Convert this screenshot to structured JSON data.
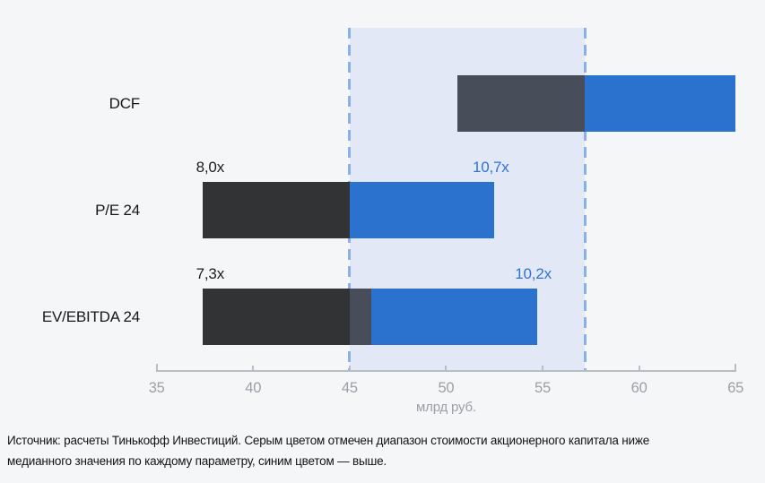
{
  "colors": {
    "background": "#f5f6f8",
    "band_fill": "#e2e8f6",
    "band_dash": "#8ab0e8",
    "bar_black": "#323335",
    "bar_slate": "#474e5a",
    "bar_blue": "#2b72cf",
    "value_label_blue": "#2e74d4",
    "value_label_dark": "#1b1d1f",
    "row_label_dark": "#15171a",
    "axis_gray": "#b9bdc4",
    "tick_text_gray": "#9b9fa7",
    "note_text": "#121315"
  },
  "chart_data": {
    "type": "bar",
    "orientation": "horizontal",
    "title": "",
    "xlabel": "млрд руб.",
    "x_axis": {
      "min": 35,
      "max": 65,
      "ticks": [
        "35",
        "40",
        "45",
        "50",
        "55",
        "60",
        "65"
      ]
    },
    "median_band": {
      "from": 45,
      "to": 57.2
    },
    "legend_note": "gray = below median equity value, blue = above median",
    "rows": [
      {
        "label": "DCF",
        "low": 50.6,
        "median": 57.2,
        "high": 65,
        "low_label": "",
        "high_label": "",
        "segments": [
          {
            "from": 50.6,
            "to": 57.2,
            "role": "below-median",
            "color_key": "bar_slate"
          },
          {
            "from": 57.2,
            "to": 65,
            "role": "above-median",
            "color_key": "bar_blue"
          }
        ]
      },
      {
        "label": "P/E 24",
        "low": 37.4,
        "median": 45,
        "high": 52.5,
        "low_label": "8,0x",
        "high_label": "10,7x",
        "segments": [
          {
            "from": 37.4,
            "to": 45,
            "role": "below-median",
            "color_key": "bar_black"
          },
          {
            "from": 45,
            "to": 52.5,
            "role": "above-median",
            "color_key": "bar_blue"
          }
        ]
      },
      {
        "label": "EV/EBITDA 24",
        "low": 37.4,
        "median": 46.1,
        "high": 54.7,
        "low_label": "7,3x",
        "high_label": "10,2x",
        "segments": [
          {
            "from": 37.4,
            "to": 45,
            "role": "below-median",
            "color_key": "bar_black"
          },
          {
            "from": 45,
            "to": 46.1,
            "role": "below-median",
            "color_key": "bar_slate"
          },
          {
            "from": 46.1,
            "to": 54.7,
            "role": "above-median",
            "color_key": "bar_blue"
          }
        ]
      }
    ]
  },
  "source_note_lines": [
    "Источник: расчеты Тинькофф Инвестиций. Серым цветом отмечен диапазон стоимости акционерного капитала ниже",
    "медианного значения по каждому параметру, синим цветом — выше."
  ]
}
